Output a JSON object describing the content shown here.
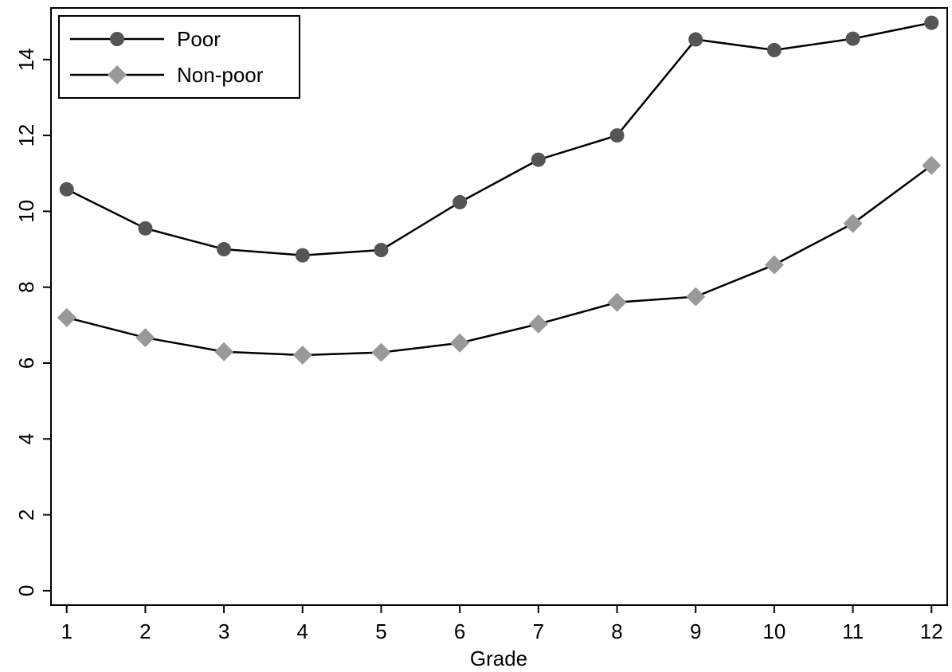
{
  "chart_data": {
    "type": "line",
    "x_label": "Grade",
    "x": [
      1,
      2,
      3,
      4,
      5,
      6,
      7,
      8,
      9,
      10,
      11,
      12
    ],
    "series": [
      {
        "name": "Poor",
        "color": "#555555",
        "marker": "circle",
        "values": [
          10.58,
          9.55,
          9.0,
          8.84,
          8.98,
          10.24,
          11.36,
          12.0,
          14.53,
          14.25,
          14.55,
          14.97
        ]
      },
      {
        "name": "Non-poor",
        "color": "#999999",
        "marker": "diamond",
        "values": [
          7.2,
          6.67,
          6.3,
          6.21,
          6.28,
          6.53,
          7.03,
          7.6,
          7.75,
          8.59,
          9.68,
          11.21
        ]
      }
    ],
    "line_color": "#000000",
    "xlim": [
      0.8,
      12.2
    ],
    "xticks": [
      1,
      2,
      3,
      4,
      5,
      6,
      7,
      8,
      9,
      10,
      11,
      12
    ],
    "ylim": [
      -0.38,
      15.36
    ],
    "yticks": [
      0,
      2,
      4,
      6,
      8,
      10,
      12,
      14
    ],
    "grid": false,
    "legend": "top-left"
  }
}
